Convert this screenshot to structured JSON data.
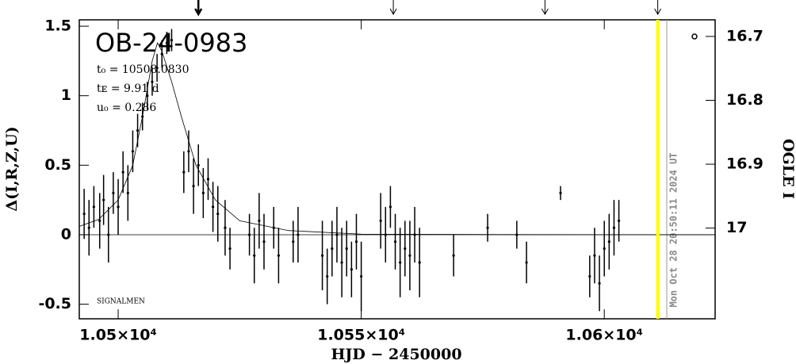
{
  "chart_data": {
    "type": "scatter",
    "title": "OB-24-0983",
    "params": [
      "t₀ = 10508.0830",
      "tᴇ = 9.91 d",
      "u₀ = 0.286"
    ],
    "signature": "SIGNALMEN",
    "xlabel": "HJD − 2450000",
    "ylabel": "Δ(I,R,Z,U)",
    "y2label": "OGLE I",
    "date_label": "Mon Oct 28 20:50:11 2024 UT",
    "xlim": [
      10492,
      10622.8
    ],
    "ylim": [
      -0.605,
      1.546
    ],
    "y2lim": [
      17.142,
      16.674
    ],
    "xticks": [
      {
        "value": 10500,
        "label": "1.05×10⁴"
      },
      {
        "value": 10550,
        "label": "1.055×10⁴"
      },
      {
        "value": 10600,
        "label": "1.06×10⁴"
      }
    ],
    "yticks": [
      -0.5,
      0,
      0.5,
      1,
      1.5
    ],
    "y2ticks": [
      16.7,
      16.8,
      16.9,
      17
    ],
    "x": [
      10493,
      10494,
      10495,
      10496.2,
      10497,
      10498,
      10499,
      10500,
      10501,
      10502,
      10503,
      10504,
      10505,
      10506,
      10507,
      10508,
      10509,
      10510,
      10511,
      10513.5,
      10514.5,
      10515.5,
      10516.5,
      10517.5,
      10518.5,
      10519.5,
      10520.5,
      10522,
      10523,
      10527,
      10528,
      10529,
      10530,
      10532,
      10533,
      10536,
      10537,
      10542,
      10543,
      10544,
      10545,
      10546,
      10547,
      10548,
      10549,
      10550,
      10554,
      10555,
      10556,
      10557,
      10558,
      10559,
      10560,
      10561,
      10562,
      10569,
      10576,
      10582,
      10584,
      10591,
      10597,
      10598,
      10599,
      10600,
      10601,
      10602,
      10603
    ],
    "values": [
      0.15,
      0.05,
      0.2,
      0.1,
      0.25,
      0.0,
      0.3,
      0.2,
      0.45,
      0.3,
      0.6,
      0.75,
      0.85,
      1.0,
      1.1,
      1.2,
      1.3,
      1.38,
      1.4,
      0.45,
      0.6,
      0.35,
      0.5,
      0.3,
      0.4,
      0.2,
      0.15,
      0.05,
      -0.1,
      0.0,
      -0.15,
      0.1,
      -0.05,
      0.05,
      -0.15,
      -0.05,
      0.0,
      -0.15,
      -0.3,
      -0.1,
      0.0,
      -0.2,
      -0.1,
      -0.25,
      -0.05,
      -0.3,
      0.1,
      0.0,
      0.2,
      -0.05,
      -0.2,
      -0.1,
      -0.15,
      0.0,
      -0.2,
      -0.15,
      0.05,
      0.0,
      -0.2,
      0.3,
      -0.3,
      -0.15,
      -0.35,
      -0.1,
      -0.05,
      0.05,
      0.1
    ],
    "errors": [
      0.18,
      0.2,
      0.15,
      0.2,
      0.18,
      0.2,
      0.15,
      0.2,
      0.15,
      0.2,
      0.15,
      0.12,
      0.1,
      0.1,
      0.1,
      0.1,
      0.1,
      0.08,
      0.08,
      0.15,
      0.15,
      0.2,
      0.15,
      0.18,
      0.15,
      0.18,
      0.2,
      0.2,
      0.15,
      0.15,
      0.2,
      0.2,
      0.2,
      0.15,
      0.2,
      0.15,
      0.2,
      0.25,
      0.2,
      0.2,
      0.2,
      0.25,
      0.2,
      0.2,
      0.2,
      0.25,
      0.2,
      0.2,
      0.15,
      0.2,
      0.25,
      0.2,
      0.25,
      0.2,
      0.25,
      0.15,
      0.1,
      0.1,
      0.15,
      0.05,
      0.15,
      0.2,
      0.2,
      0.2,
      0.2,
      0.2,
      0.15
    ],
    "model": {
      "x": [
        10492,
        10496,
        10500,
        10503,
        10505,
        10507,
        10508.08,
        10509,
        10511,
        10513,
        10516,
        10520,
        10525,
        10535,
        10550,
        10580,
        10622.8
      ],
      "values": [
        0.06,
        0.11,
        0.25,
        0.5,
        0.85,
        1.25,
        1.38,
        1.32,
        1.1,
        0.85,
        0.5,
        0.25,
        0.1,
        0.03,
        0.004,
        0.001,
        0
      ]
    },
    "arrows": [
      10516.5,
      10556.6,
      10587.8,
      10611
    ],
    "now": 10611,
    "color": "#000000",
    "now_color": "#ffff00"
  }
}
